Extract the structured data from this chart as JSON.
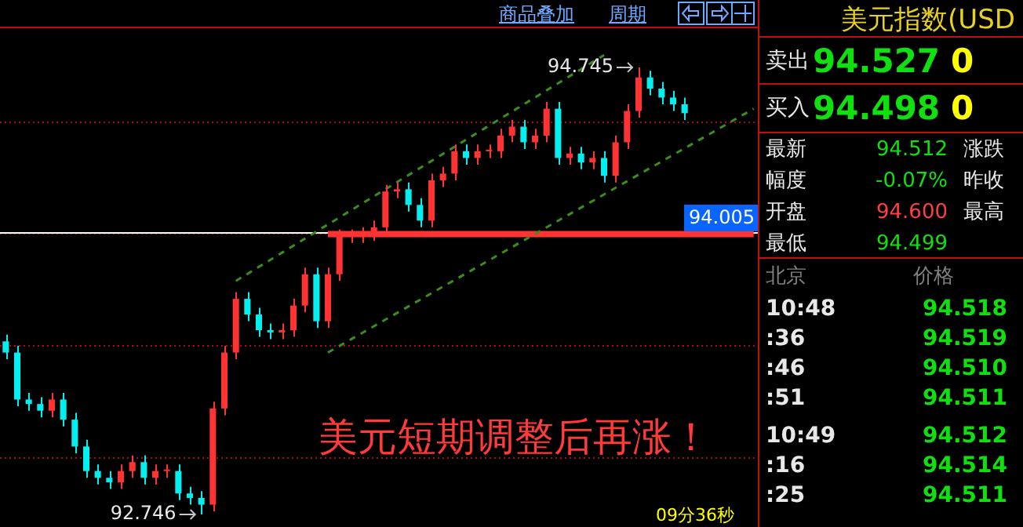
{
  "chart_data": [
    {
      "type": "candlestick",
      "categories": [
        null,
        null,
        null,
        null,
        null,
        null,
        null,
        null,
        null,
        null,
        null,
        null,
        null,
        null,
        null,
        null,
        null,
        null,
        null,
        null,
        null,
        null,
        null,
        null,
        null,
        null,
        null,
        null,
        null,
        null,
        null,
        null,
        null,
        null,
        null,
        null,
        null,
        null,
        null,
        null,
        null,
        null,
        null,
        null,
        null,
        null,
        null,
        null,
        null,
        null,
        null,
        null,
        null,
        null,
        null,
        null,
        null,
        null,
        null,
        null,
        null,
        null,
        null,
        null,
        null,
        null
      ],
      "ohlc": [
        [
          93.52,
          93.55,
          93.44,
          93.47
        ],
        [
          93.47,
          93.5,
          93.23,
          93.26
        ],
        [
          93.26,
          93.29,
          93.21,
          93.24
        ],
        [
          93.24,
          93.27,
          93.18,
          93.21
        ],
        [
          93.21,
          93.29,
          93.18,
          93.26
        ],
        [
          93.26,
          93.29,
          93.14,
          93.17
        ],
        [
          93.17,
          93.2,
          93.02,
          93.05
        ],
        [
          93.05,
          93.08,
          92.91,
          92.94
        ],
        [
          92.94,
          92.97,
          92.88,
          92.91
        ],
        [
          92.91,
          92.94,
          92.86,
          92.89
        ],
        [
          92.89,
          92.97,
          92.86,
          92.94
        ],
        [
          92.94,
          93.01,
          92.91,
          92.98
        ],
        [
          92.98,
          93.01,
          92.88,
          92.91
        ],
        [
          92.91,
          92.97,
          92.88,
          92.94
        ],
        [
          92.94,
          92.97,
          92.91,
          92.94
        ],
        [
          92.94,
          92.97,
          92.81,
          92.84
        ],
        [
          92.84,
          92.87,
          92.79,
          92.82
        ],
        [
          92.82,
          92.85,
          92.746,
          92.79
        ],
        [
          92.79,
          93.25,
          92.76,
          93.22
        ],
        [
          93.22,
          93.5,
          93.19,
          93.47
        ],
        [
          93.47,
          93.74,
          93.44,
          93.71
        ],
        [
          93.71,
          93.74,
          93.61,
          93.64
        ],
        [
          93.64,
          93.67,
          93.54,
          93.57
        ],
        [
          93.57,
          93.6,
          93.53,
          93.56
        ],
        [
          93.56,
          93.6,
          93.53,
          93.57
        ],
        [
          93.57,
          93.71,
          93.54,
          93.68
        ],
        [
          93.68,
          93.85,
          93.65,
          93.82
        ],
        [
          93.82,
          93.85,
          93.58,
          93.61
        ],
        [
          93.61,
          93.85,
          93.58,
          93.82
        ],
        [
          93.82,
          94.02,
          93.79,
          93.99
        ],
        [
          93.99,
          94.02,
          93.96,
          93.99
        ],
        [
          93.99,
          94.03,
          93.96,
          94.0
        ],
        [
          94.0,
          94.06,
          93.97,
          94.03
        ],
        [
          94.03,
          94.22,
          94.0,
          94.19
        ],
        [
          94.19,
          94.23,
          94.16,
          94.2
        ],
        [
          94.2,
          94.23,
          94.1,
          94.13
        ],
        [
          94.13,
          94.16,
          94.03,
          94.06
        ],
        [
          94.06,
          94.27,
          94.03,
          94.24
        ],
        [
          94.24,
          94.3,
          94.21,
          94.27
        ],
        [
          94.27,
          94.4,
          94.24,
          94.37
        ],
        [
          94.37,
          94.4,
          94.31,
          94.34
        ],
        [
          94.34,
          94.4,
          94.31,
          94.37
        ],
        [
          94.37,
          94.4,
          94.34,
          94.37
        ],
        [
          94.37,
          94.47,
          94.34,
          94.44
        ],
        [
          94.44,
          94.51,
          94.41,
          94.48
        ],
        [
          94.48,
          94.51,
          94.38,
          94.41
        ],
        [
          94.41,
          94.47,
          94.38,
          94.44
        ],
        [
          94.44,
          94.59,
          94.41,
          94.56
        ],
        [
          94.56,
          94.59,
          94.31,
          94.34
        ],
        [
          94.34,
          94.39,
          94.31,
          94.36
        ],
        [
          94.36,
          94.39,
          94.29,
          94.32
        ],
        [
          94.32,
          94.37,
          94.29,
          94.34
        ],
        [
          94.34,
          94.37,
          94.23,
          94.26
        ],
        [
          94.26,
          94.44,
          94.23,
          94.41
        ],
        [
          94.41,
          94.58,
          94.38,
          94.55
        ],
        [
          94.55,
          94.745,
          94.52,
          94.7
        ],
        [
          94.7,
          94.73,
          94.62,
          94.65
        ],
        [
          94.65,
          94.68,
          94.58,
          94.61
        ],
        [
          94.61,
          94.64,
          94.55,
          94.58
        ],
        [
          94.58,
          94.61,
          94.51,
          94.54
        ],
        null,
        null,
        null,
        null,
        null,
        null
      ],
      "series": [
        {
          "type": "line",
          "color": "#3c8c1e",
          "line_style": "dashed",
          "values": [
            null,
            null,
            null,
            null,
            null,
            null,
            null,
            null,
            null,
            null,
            null,
            null,
            null,
            null,
            null,
            null,
            null,
            null,
            null,
            null,
            93.79,
            null,
            null,
            null,
            null,
            null,
            null,
            null,
            null,
            null,
            null,
            null,
            null,
            null,
            null,
            null,
            null,
            null,
            null,
            null,
            null,
            null,
            null,
            null,
            null,
            null,
            null,
            null,
            null,
            null,
            null,
            null,
            94.8,
            null,
            null,
            null,
            null,
            null,
            null,
            null,
            null,
            null,
            null,
            null,
            null,
            null
          ]
        },
        {
          "type": "line",
          "color": "#3c8c1e",
          "line_style": "dashed",
          "values": [
            null,
            null,
            null,
            null,
            null,
            null,
            null,
            null,
            null,
            null,
            null,
            null,
            null,
            null,
            null,
            null,
            null,
            null,
            null,
            null,
            null,
            null,
            null,
            null,
            null,
            null,
            null,
            null,
            93.47,
            null,
            null,
            null,
            null,
            null,
            null,
            null,
            null,
            null,
            null,
            null,
            null,
            null,
            null,
            null,
            null,
            null,
            null,
            null,
            null,
            null,
            null,
            null,
            null,
            null,
            null,
            null,
            null,
            null,
            null,
            null,
            null,
            null,
            null,
            null,
            null,
            94.56
          ]
        },
        {
          "type": "line",
          "color": "#ff3333",
          "line_style": "solid",
          "values": [
            null,
            null,
            null,
            null,
            null,
            null,
            null,
            null,
            null,
            null,
            null,
            null,
            null,
            null,
            null,
            null,
            null,
            null,
            null,
            null,
            null,
            null,
            null,
            null,
            null,
            null,
            null,
            null,
            94.0,
            null,
            null,
            null,
            null,
            null,
            null,
            null,
            null,
            null,
            null,
            null,
            null,
            null,
            null,
            null,
            null,
            null,
            null,
            null,
            null,
            null,
            null,
            null,
            null,
            null,
            null,
            null,
            null,
            null,
            null,
            null,
            null,
            null,
            null,
            null,
            null,
            94.0
          ]
        }
      ],
      "ylim": [
        92.69,
        94.92
      ],
      "yticks": [
        {
          "value": 93,
          "label": null
        },
        {
          "value": 93.5,
          "label": null
        },
        {
          "value": 94,
          "label": null
        },
        {
          "value": 94.5,
          "label": null
        }
      ],
      "grid": "y",
      "tick_labels": false,
      "legend": false,
      "marker": "none",
      "ref_lines": [
        {
          "axis": "y",
          "value": 94.005,
          "label": "94.005",
          "color": "#ffffff"
        }
      ],
      "annotations": [
        "商品叠加",
        "周期",
        "美元短期调整后再涨！",
        "09分36秒",
        {
          "text": "94.745",
          "y": 94.745
        },
        "92.746"
      ]
    },
    {
      "type": "other",
      "title": "美元指数(USD",
      "annotations": [
        "卖出",
        "94.527",
        "0",
        "买入",
        "94.498",
        "0",
        "最新",
        "94.512",
        "涨跌",
        "幅度",
        "-0.07%",
        "昨收",
        "开盘",
        "94.600",
        "最高",
        "最低",
        "94.499",
        "北京",
        "价格",
        "10:48",
        "94.518",
        ":36",
        "94.519",
        ":46",
        "94.510",
        ":51",
        "94.511",
        "10:49",
        "94.512",
        ":16",
        "94.514",
        ":25",
        "94.511"
      ]
    }
  ]
}
